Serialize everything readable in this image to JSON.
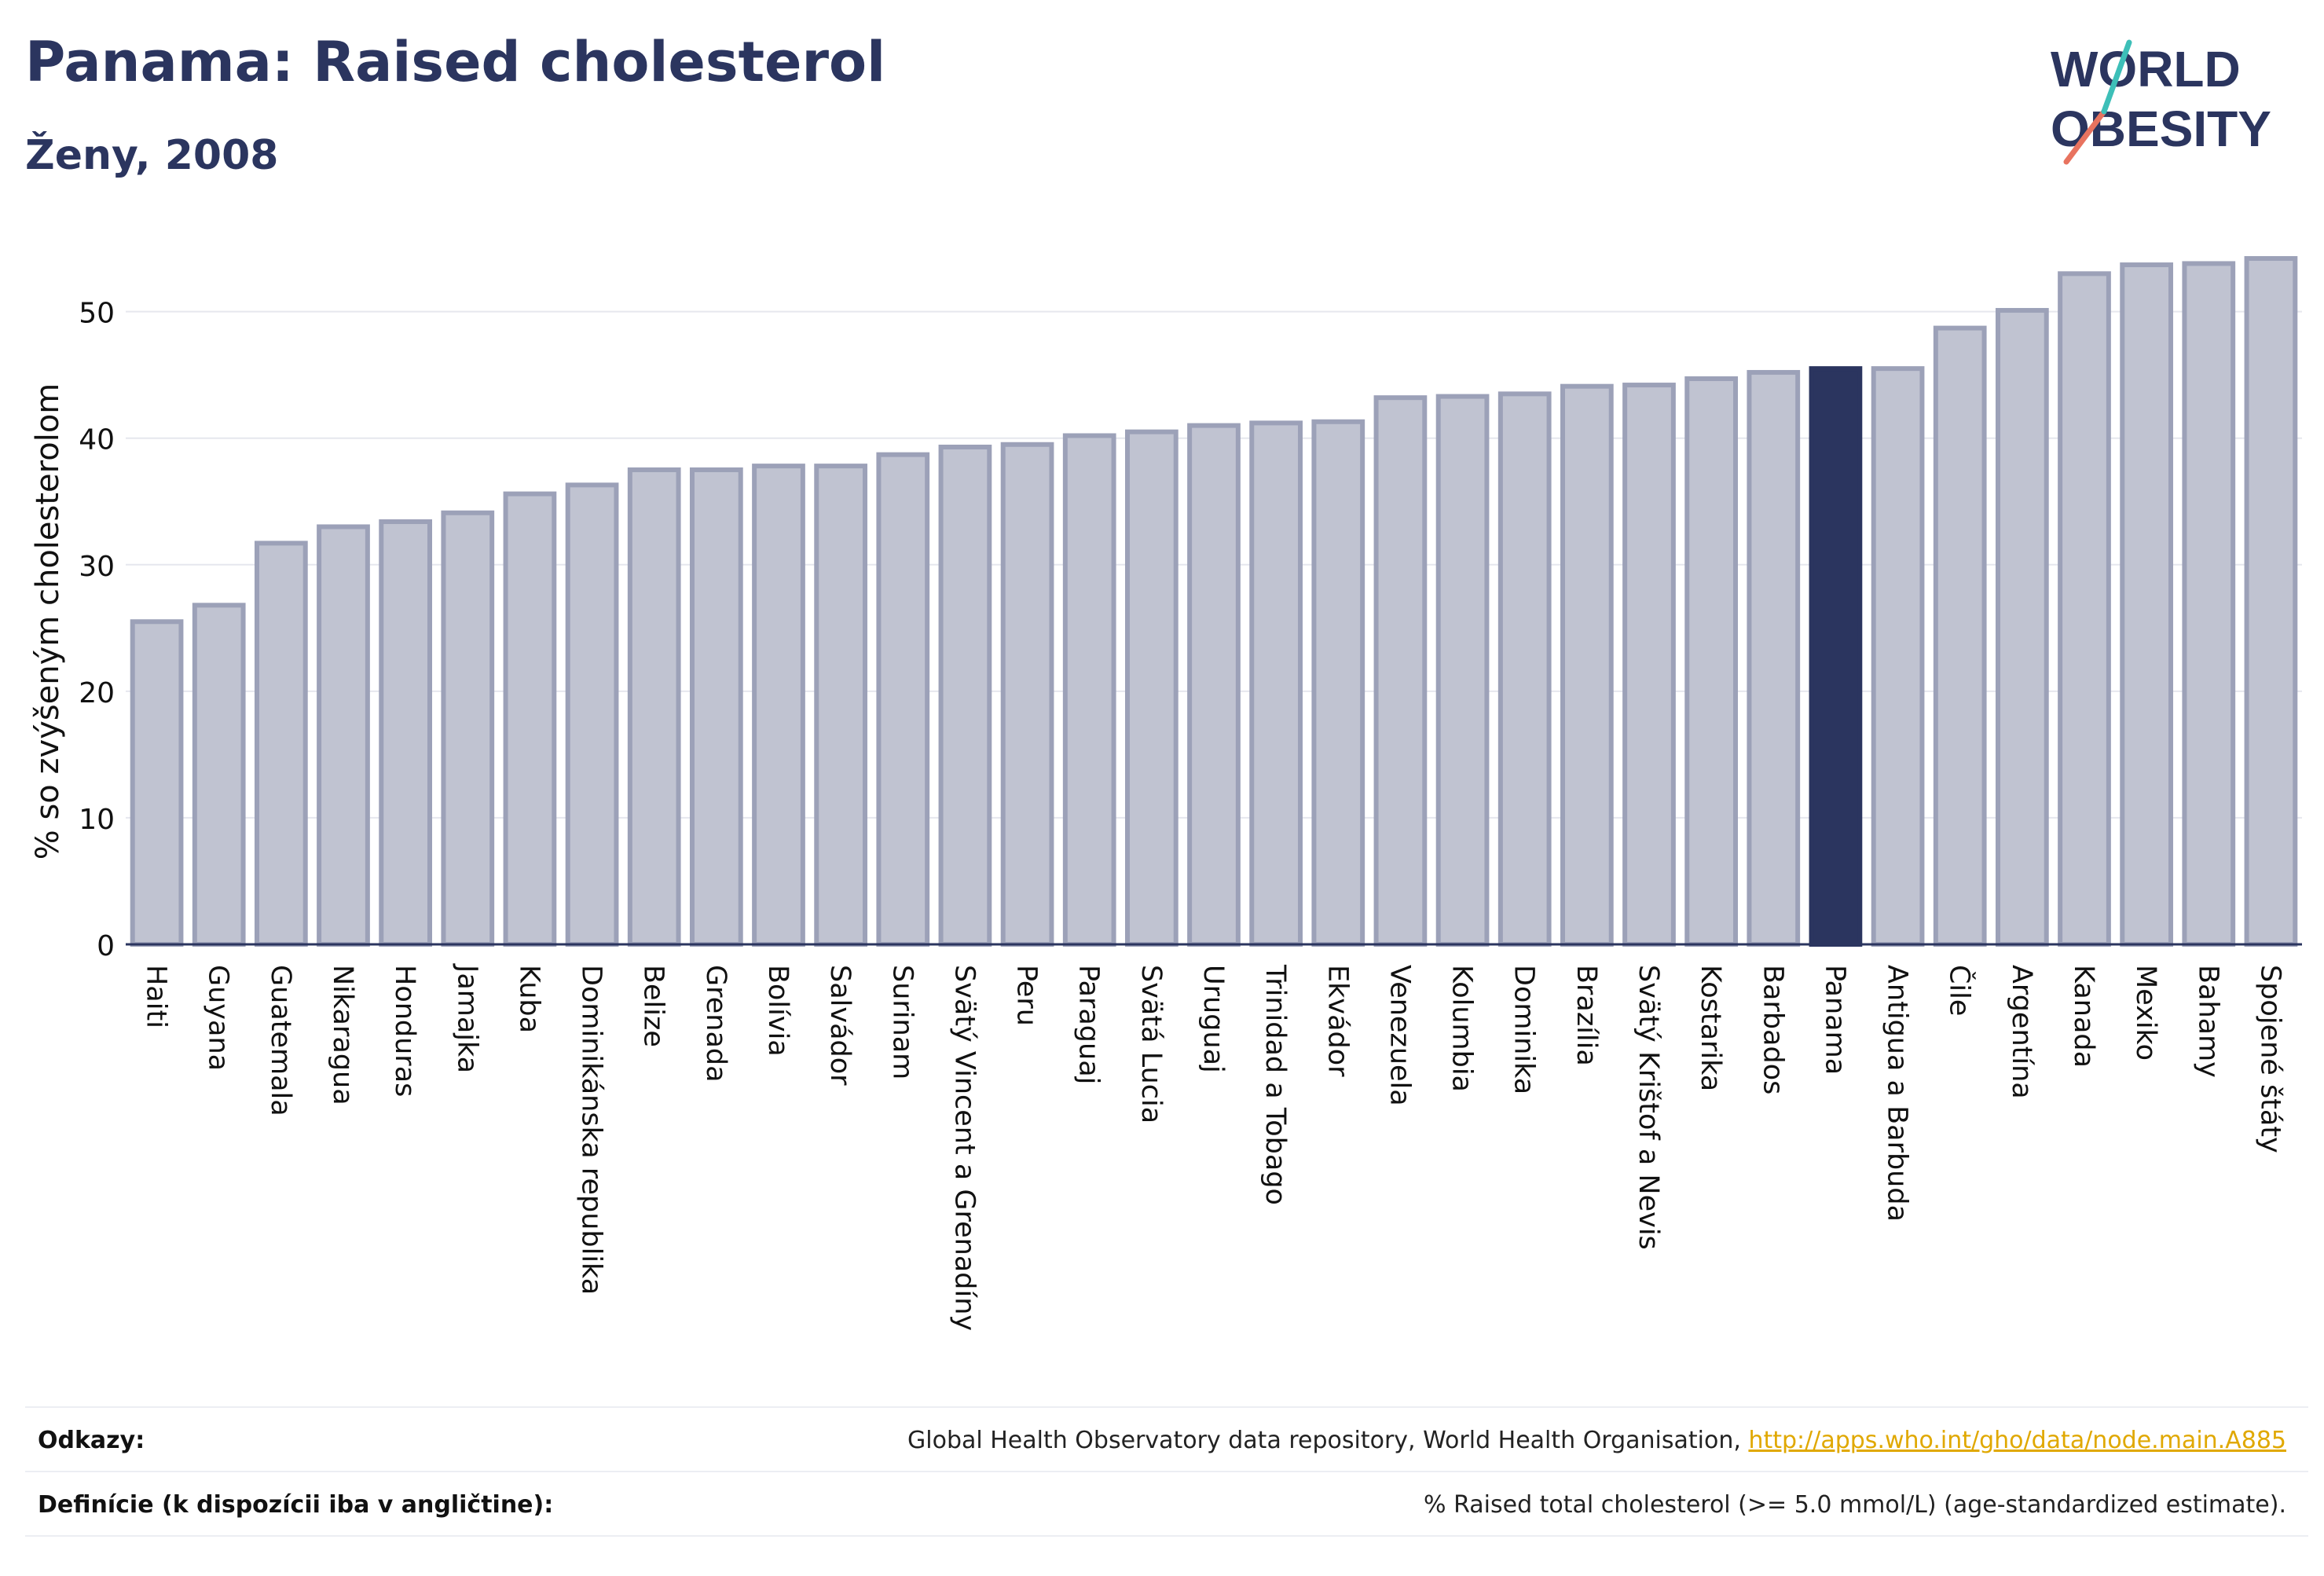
{
  "header": {
    "title": "Panama: Raised cholesterol",
    "subtitle": "Ženy, 2008"
  },
  "logo": {
    "line1": "WORLD",
    "line2": "OBESITY"
  },
  "footer": {
    "sources_label": "Odkazy:",
    "sources_text": "Global Health Observatory data repository, World Health Organisation, ",
    "sources_link": "http://apps.who.int/gho/data/node.main.A885",
    "definitions_label": "Definície (k dispozícii iba v angličtine):",
    "definitions_text": "% Raised total cholesterol (>= 5.0 mmol/L) (age-standardized estimate)."
  },
  "colors": {
    "bar_fill": "#c0c3d1",
    "bar_stroke": "#9ca1b8",
    "highlight": "#2b355f",
    "grid": "#e6e7ee",
    "axis": "#2b355f"
  },
  "chart_data": {
    "type": "bar",
    "title": "Panama: Raised cholesterol",
    "subtitle": "Ženy, 2008",
    "ylabel": "% so zvýšeným cholesterolom",
    "ylim": [
      0,
      56
    ],
    "yticks": [
      0,
      10,
      20,
      30,
      40,
      50
    ],
    "grid": true,
    "highlight": "Panama",
    "categories": [
      "Haiti",
      "Guyana",
      "Guatemala",
      "Nikaragua",
      "Honduras",
      "Jamajka",
      "Kuba",
      "Dominikánska republika",
      "Belize",
      "Grenada",
      "Bolívia",
      "Salvádor",
      "Surinam",
      "Svätý Vincent a Grenadíny",
      "Peru",
      "Paraguaj",
      "Svätá Lucia",
      "Uruguaj",
      "Trinidad a Tobago",
      "Ekvádor",
      "Venezuela",
      "Kolumbia",
      "Dominika",
      "Brazília",
      "Svätý Krištof a Nevis",
      "Kostarika",
      "Barbados",
      "Panama",
      "Antigua a Barbuda",
      "Čile",
      "Argentína",
      "Kanada",
      "Mexiko",
      "Bahamy",
      "Spojené štáty"
    ],
    "values": [
      25.5,
      26.8,
      31.7,
      33.0,
      33.4,
      34.1,
      35.6,
      36.3,
      37.5,
      37.5,
      37.8,
      37.8,
      38.7,
      39.3,
      39.5,
      40.2,
      40.5,
      41.0,
      41.2,
      41.3,
      43.2,
      43.3,
      43.5,
      44.1,
      44.2,
      44.7,
      45.2,
      45.5,
      45.5,
      48.7,
      50.1,
      53.0,
      53.7,
      53.8,
      54.2
    ]
  }
}
